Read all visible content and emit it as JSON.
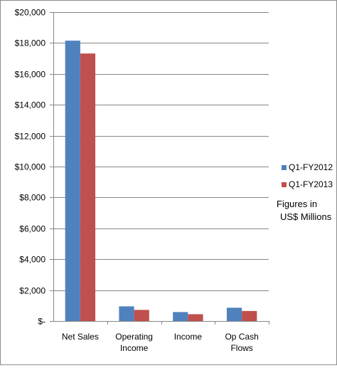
{
  "chart_data": {
    "type": "bar",
    "title": "",
    "xlabel": "",
    "ylabel": "",
    "categories": [
      "Net Sales",
      "Operating Income",
      "Income",
      "Op Cash Flows"
    ],
    "category_lines": [
      [
        "Net Sales"
      ],
      [
        "Operating",
        "Income"
      ],
      [
        "Income"
      ],
      [
        "Op Cash",
        "Flows"
      ]
    ],
    "series": [
      {
        "name": "Q1-FY2012",
        "color": "#4f81bd",
        "values": [
          18150,
          950,
          580,
          860
        ]
      },
      {
        "name": "Q1-FY2013",
        "color": "#c0504d",
        "values": [
          17320,
          720,
          440,
          650
        ]
      }
    ],
    "ylim": [
      0,
      20000
    ],
    "y_ticks": [
      0,
      2000,
      4000,
      6000,
      8000,
      10000,
      12000,
      14000,
      16000,
      18000,
      20000
    ],
    "y_tick_labels": [
      "$-",
      "$2,000",
      "$4,000",
      "$6,000",
      "$8,000",
      "$10,000",
      "$12,000",
      "$14,000",
      "$16,000",
      "$18,000",
      "$20,000"
    ],
    "grid": true,
    "legend_position": "right",
    "annotation_lines": [
      "Figures in",
      "US$ Millions"
    ]
  }
}
